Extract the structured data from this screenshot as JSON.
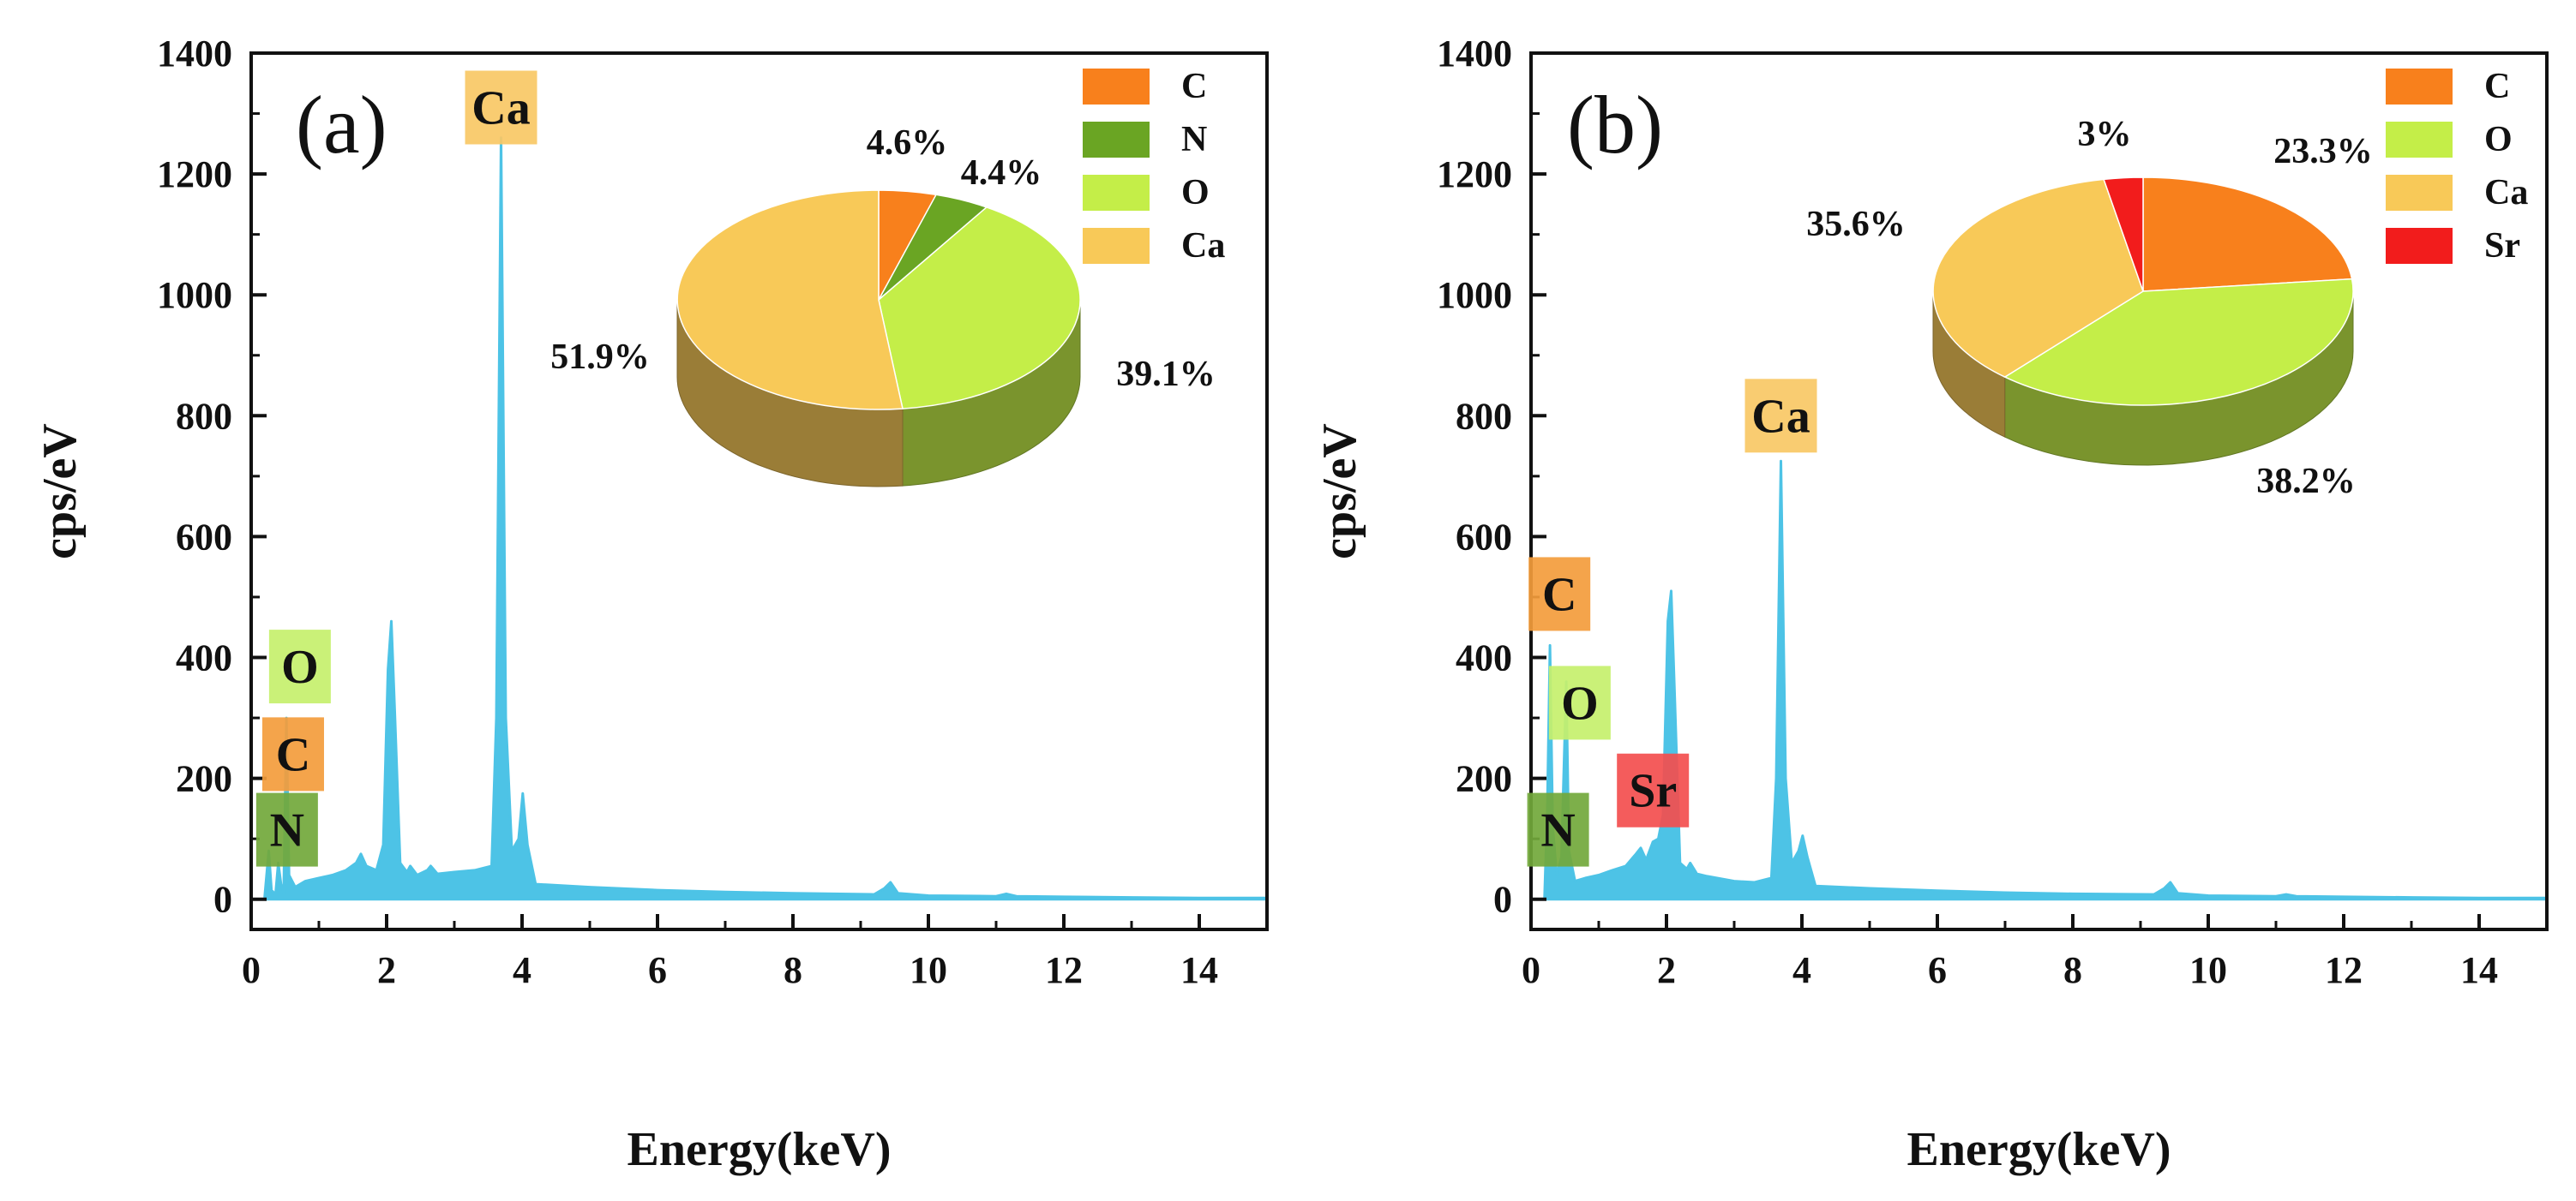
{
  "chart_data": [
    {
      "type": "line",
      "panel": "(a)",
      "xlabel": "Energy(keV)",
      "ylabel": "cps/eV",
      "xlim": [
        0,
        15
      ],
      "ylim": [
        -50,
        1400
      ],
      "xticks": [
        0,
        2,
        4,
        6,
        8,
        10,
        12,
        14
      ],
      "yticks": [
        0,
        200,
        400,
        600,
        800,
        1000,
        1200,
        1400
      ],
      "line_color": "#4DC3E6",
      "spectrum": [
        [
          0.2,
          5
        ],
        [
          0.26,
          80
        ],
        [
          0.3,
          15
        ],
        [
          0.36,
          8
        ],
        [
          0.4,
          60
        ],
        [
          0.44,
          25
        ],
        [
          0.48,
          10
        ],
        [
          0.52,
          300
        ],
        [
          0.56,
          40
        ],
        [
          0.65,
          20
        ],
        [
          0.8,
          30
        ],
        [
          1.0,
          35
        ],
        [
          1.2,
          40
        ],
        [
          1.4,
          48
        ],
        [
          1.55,
          60
        ],
        [
          1.62,
          75
        ],
        [
          1.7,
          55
        ],
        [
          1.85,
          48
        ],
        [
          1.95,
          90
        ],
        [
          2.02,
          380
        ],
        [
          2.07,
          460
        ],
        [
          2.12,
          310
        ],
        [
          2.2,
          60
        ],
        [
          2.3,
          45
        ],
        [
          2.35,
          55
        ],
        [
          2.45,
          40
        ],
        [
          2.6,
          48
        ],
        [
          2.65,
          55
        ],
        [
          2.75,
          42
        ],
        [
          3.0,
          45
        ],
        [
          3.3,
          48
        ],
        [
          3.55,
          55
        ],
        [
          3.62,
          300
        ],
        [
          3.69,
          1260
        ],
        [
          3.76,
          300
        ],
        [
          3.85,
          80
        ],
        [
          3.95,
          100
        ],
        [
          4.01,
          175
        ],
        [
          4.08,
          90
        ],
        [
          4.2,
          25
        ],
        [
          5.0,
          20
        ],
        [
          6.0,
          15
        ],
        [
          7.0,
          12
        ],
        [
          8.0,
          10
        ],
        [
          9.2,
          8
        ],
        [
          9.35,
          18
        ],
        [
          9.44,
          28
        ],
        [
          9.55,
          10
        ],
        [
          10.0,
          6
        ],
        [
          11.0,
          5
        ],
        [
          11.15,
          9
        ],
        [
          11.3,
          5
        ],
        [
          12.0,
          4
        ],
        [
          13.0,
          3
        ],
        [
          14.0,
          2
        ],
        [
          15.0,
          2
        ]
      ],
      "element_labels": [
        {
          "text": "Ca",
          "x": 3.69,
          "y": 1310,
          "color": "#F8C865"
        },
        {
          "text": "O",
          "x": 0.72,
          "y": 385,
          "color": "#C6F06C"
        },
        {
          "text": "C",
          "x": 0.62,
          "y": 240,
          "color": "#F39C3C"
        },
        {
          "text": "N",
          "x": 0.53,
          "y": 115,
          "color": "#72A83B"
        }
      ],
      "pie": {
        "slices": [
          {
            "label": "C",
            "value": 4.6,
            "pct_text": "4.6%",
            "color": "#F8801C"
          },
          {
            "label": "N",
            "value": 4.4,
            "pct_text": "4.4%",
            "color": "#6AA523"
          },
          {
            "label": "O",
            "value": 39.1,
            "pct_text": "39.1%",
            "color": "#C4EE48"
          },
          {
            "label": "Ca",
            "value": 51.9,
            "pct_text": "51.9%",
            "color": "#F8C958"
          }
        ]
      }
    },
    {
      "type": "line",
      "panel": "(b)",
      "xlabel": "Energy(keV)",
      "ylabel": "cps/eV",
      "xlim": [
        0,
        15
      ],
      "ylim": [
        -50,
        1400
      ],
      "xticks": [
        0,
        2,
        4,
        6,
        8,
        10,
        12,
        14
      ],
      "yticks": [
        0,
        200,
        400,
        600,
        800,
        1000,
        1200,
        1400
      ],
      "line_color": "#4DC3E6",
      "spectrum": [
        [
          0.2,
          5
        ],
        [
          0.24,
          150
        ],
        [
          0.28,
          420
        ],
        [
          0.32,
          120
        ],
        [
          0.38,
          40
        ],
        [
          0.45,
          70
        ],
        [
          0.52,
          360
        ],
        [
          0.56,
          80
        ],
        [
          0.65,
          30
        ],
        [
          0.8,
          35
        ],
        [
          1.0,
          40
        ],
        [
          1.2,
          48
        ],
        [
          1.4,
          55
        ],
        [
          1.55,
          75
        ],
        [
          1.62,
          85
        ],
        [
          1.7,
          65
        ],
        [
          1.8,
          95
        ],
        [
          1.88,
          100
        ],
        [
          1.95,
          140
        ],
        [
          2.02,
          460
        ],
        [
          2.07,
          510
        ],
        [
          2.12,
          340
        ],
        [
          2.2,
          60
        ],
        [
          2.3,
          50
        ],
        [
          2.35,
          60
        ],
        [
          2.45,
          42
        ],
        [
          2.6,
          38
        ],
        [
          3.0,
          30
        ],
        [
          3.3,
          28
        ],
        [
          3.55,
          35
        ],
        [
          3.62,
          200
        ],
        [
          3.69,
          725
        ],
        [
          3.76,
          200
        ],
        [
          3.85,
          60
        ],
        [
          3.95,
          80
        ],
        [
          4.01,
          105
        ],
        [
          4.08,
          70
        ],
        [
          4.2,
          22
        ],
        [
          5.0,
          18
        ],
        [
          6.0,
          14
        ],
        [
          7.0,
          11
        ],
        [
          8.0,
          9
        ],
        [
          9.2,
          8
        ],
        [
          9.35,
          18
        ],
        [
          9.44,
          28
        ],
        [
          9.55,
          10
        ],
        [
          10.0,
          6
        ],
        [
          11.0,
          5
        ],
        [
          11.15,
          8
        ],
        [
          11.3,
          5
        ],
        [
          12.0,
          4
        ],
        [
          13.0,
          3
        ],
        [
          14.0,
          2
        ],
        [
          15.0,
          2
        ]
      ],
      "element_labels": [
        {
          "text": "Ca",
          "x": 3.69,
          "y": 800,
          "color": "#F8C865"
        },
        {
          "text": "C",
          "x": 0.42,
          "y": 505,
          "color": "#F39C3C"
        },
        {
          "text": "O",
          "x": 0.72,
          "y": 325,
          "color": "#C6F06C"
        },
        {
          "text": "Sr",
          "x": 1.8,
          "y": 180,
          "color": "#F34E4E"
        },
        {
          "text": "N",
          "x": 0.4,
          "y": 115,
          "color": "#72A83B"
        }
      ],
      "pie": {
        "slices": [
          {
            "label": "C",
            "value": 23.3,
            "pct_text": "23.3%",
            "color": "#F8801C"
          },
          {
            "label": "O",
            "value": 38.2,
            "pct_text": "38.2%",
            "color": "#C4EE48"
          },
          {
            "label": "Ca",
            "value": 35.6,
            "pct_text": "35.6%",
            "color": "#F8C958"
          },
          {
            "label": "Sr",
            "value": 3.0,
            "pct_text": "3%",
            "color": "#F21C1C"
          }
        ]
      }
    }
  ]
}
